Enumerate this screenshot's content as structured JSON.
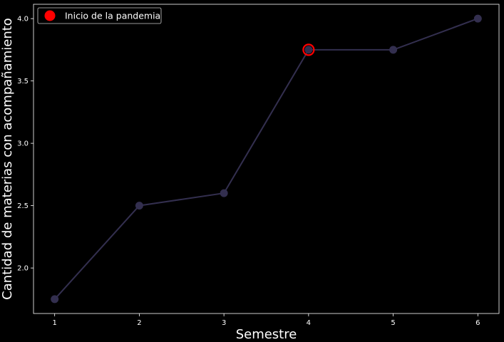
{
  "chart_data": {
    "type": "line",
    "title": "",
    "xlabel": "Semestre",
    "ylabel": "Cantidad de materias con acompañamiento",
    "x": [
      1,
      2,
      3,
      4,
      5,
      6
    ],
    "series": [
      {
        "values": [
          1.75,
          2.5,
          2.6,
          3.75,
          3.75,
          4.0
        ],
        "color": "#332f4f"
      }
    ],
    "highlight": {
      "name": "Inicio de la pandemia",
      "x": 4,
      "y": 3.75,
      "color": "#ff0000"
    },
    "xlim": [
      0.75,
      6.25
    ],
    "ylim": [
      1.635,
      4.115
    ],
    "xticks": [
      1,
      2,
      3,
      4,
      5,
      6
    ],
    "yticks": [
      2.0,
      2.5,
      3.0,
      3.5,
      4.0
    ],
    "ytick_labels": [
      "2.0",
      "2.5",
      "3.0",
      "3.5",
      "4.0"
    ],
    "legend": {
      "position": "top-left",
      "entries": [
        "Inicio de la pandemia"
      ]
    },
    "grid": false,
    "background": "#000000",
    "axis_color": "#ffffff"
  }
}
